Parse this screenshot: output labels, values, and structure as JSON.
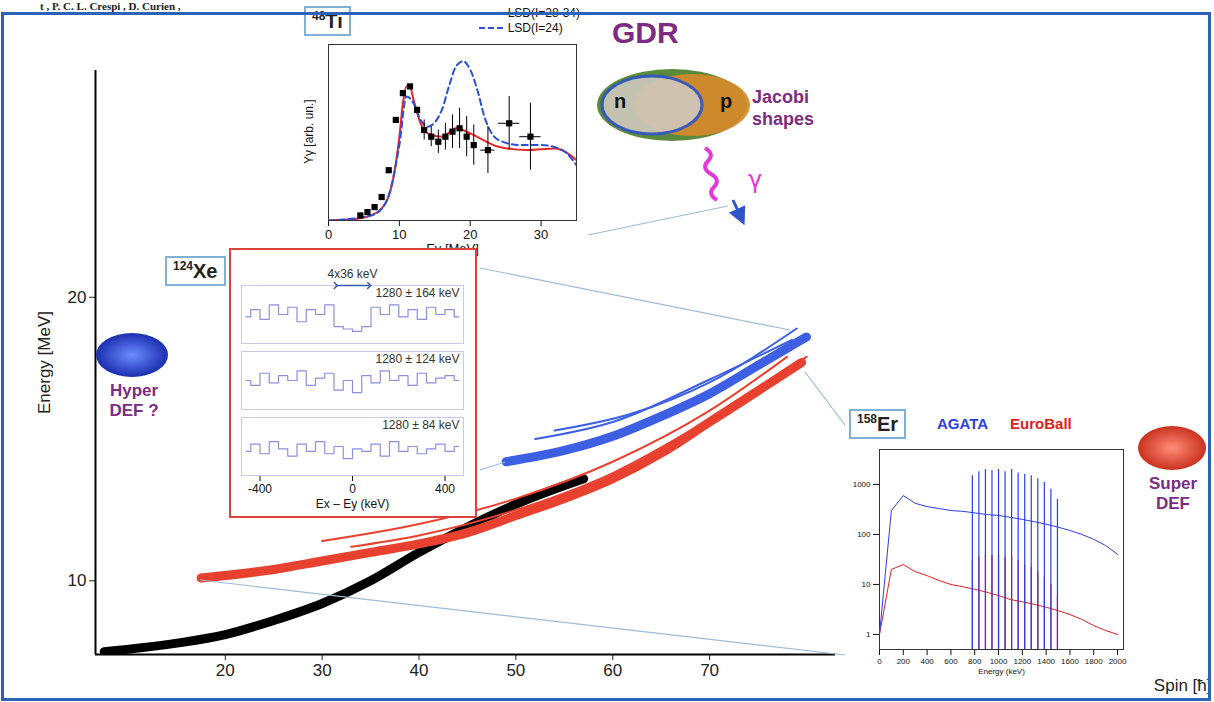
{
  "chart_data": [
    {
      "type": "line",
      "x_label": "Spin [ħ]",
      "y_label": "Energy [MeV]",
      "xlim": [
        6.6,
        83
      ],
      "ylim": [
        7.4,
        28
      ],
      "xticks": [
        20,
        30,
        40,
        50,
        60,
        70
      ],
      "yticks": [
        10,
        20
      ],
      "series": [
        {
          "color": "#000000",
          "line_style": "thick",
          "x": [
            7.5,
            15,
            20,
            25,
            30,
            35,
            40,
            45,
            50,
            57
          ],
          "values": [
            7.5,
            7.8,
            8.1,
            8.6,
            9.2,
            10.0,
            11.0,
            11.9,
            12.7,
            13.6
          ]
        },
        {
          "color": "#e9412f",
          "line_style": "thick",
          "x": [
            17.5,
            25,
            30,
            35,
            40,
            45,
            50,
            55,
            60,
            65,
            70,
            75,
            79.5
          ],
          "values": [
            10.1,
            10.4,
            10.7,
            11.0,
            11.3,
            11.7,
            12.3,
            12.9,
            13.6,
            14.5,
            15.6,
            16.7,
            17.7
          ]
        },
        {
          "color": "#e9412f",
          "line_style": "thin",
          "x": [
            30,
            40,
            50,
            60,
            70,
            78
          ],
          "values": [
            11.4,
            12.0,
            12.9,
            14.2,
            16.0,
            17.9
          ]
        },
        {
          "color": "#e9412f",
          "line_style": "thin",
          "x": [
            33,
            40,
            50,
            60,
            70,
            80
          ],
          "values": [
            11.2,
            11.6,
            12.5,
            13.8,
            15.7,
            17.9
          ]
        },
        {
          "color": "#3d5fe3",
          "line_style": "thick",
          "x": [
            49,
            55,
            60,
            65,
            70,
            75,
            80
          ],
          "values": [
            14.2,
            14.6,
            15.1,
            15.8,
            16.6,
            17.6,
            18.6
          ]
        },
        {
          "color": "#3d5fe3",
          "line_style": "thin",
          "x": [
            52,
            60,
            70,
            78.5
          ],
          "values": [
            15.0,
            15.6,
            17.1,
            18.5
          ]
        },
        {
          "color": "#3d5fe3",
          "line_style": "thin",
          "x": [
            54,
            62,
            70,
            79
          ],
          "values": [
            15.3,
            15.9,
            17.0,
            18.9
          ]
        }
      ],
      "annotations": {
        "header": "t , P. C. L. Crespi , D. Curien ,",
        "gdr": "GDR",
        "n": "n",
        "p": "p",
        "jacobi": "Jacobi shapes",
        "gamma": "γ",
        "hyper": "Hyper DEF ?",
        "super": "Super DEF"
      }
    },
    {
      "type": "line",
      "title": "48Ti",
      "x_label": "Eγ [MeV]",
      "y_label": "Yγ [arb. un.]",
      "xlim": [
        0,
        35
      ],
      "ylim": [
        0,
        1.05
      ],
      "xticks": [
        0,
        10,
        20,
        30
      ],
      "tick_labels": "x",
      "legend": "top-right",
      "series": [
        {
          "name": "LSD(I=28-34)",
          "color": "#e8262a",
          "line_style": "solid",
          "x": [
            0,
            4,
            6,
            8,
            9,
            10,
            10.5,
            11,
            11.5,
            12,
            13,
            14,
            16,
            18,
            20,
            24,
            28,
            32,
            35
          ],
          "values": [
            0,
            0.01,
            0.03,
            0.1,
            0.22,
            0.5,
            0.7,
            0.8,
            0.8,
            0.72,
            0.58,
            0.52,
            0.5,
            0.55,
            0.52,
            0.44,
            0.42,
            0.43,
            0.36
          ]
        },
        {
          "name": "LSD(I=24)",
          "color": "#2b4fd8",
          "line_style": "dashed",
          "x": [
            0,
            6,
            8,
            10,
            11,
            12,
            13,
            14,
            16,
            17,
            18,
            19,
            20,
            21,
            22,
            24,
            27,
            30,
            33,
            35
          ],
          "values": [
            0,
            0.03,
            0.1,
            0.45,
            0.74,
            0.7,
            0.6,
            0.56,
            0.66,
            0.8,
            0.92,
            0.95,
            0.9,
            0.78,
            0.62,
            0.48,
            0.45,
            0.45,
            0.42,
            0.33
          ]
        }
      ],
      "points": {
        "type": "scatter",
        "marker": "square",
        "color": "#000000",
        "x": [
          4.5,
          5.5,
          6.5,
          7.5,
          8.5,
          9.5,
          10.5,
          11.5,
          12.5,
          13.5,
          14.5,
          15.5,
          16.5,
          17.5,
          18.5,
          19.5,
          20.5,
          22.5,
          25.5,
          28.5
        ],
        "values": [
          0.03,
          0.05,
          0.08,
          0.14,
          0.3,
          0.6,
          0.76,
          0.8,
          0.66,
          0.54,
          0.5,
          0.47,
          0.5,
          0.53,
          0.55,
          0.5,
          0.45,
          0.42,
          0.58,
          0.5
        ],
        "yerr": [
          0,
          0,
          0,
          0,
          0,
          0,
          0,
          0,
          0,
          0.06,
          0.06,
          0.07,
          0.08,
          0.1,
          0.12,
          0.12,
          0.12,
          0.14,
          0.16,
          0.2
        ],
        "xerr": [
          0,
          0,
          0,
          0,
          0,
          0,
          0,
          0,
          0,
          0,
          0,
          0,
          0,
          0,
          0,
          0,
          0,
          1,
          1.5,
          1.5
        ]
      }
    },
    {
      "type": "line",
      "title": "124Xe",
      "x_label": "Ex – Ey (keV)",
      "xlim": [
        -480,
        480
      ],
      "ylim": [
        0,
        1.2
      ],
      "xticks": [
        -400,
        0,
        400
      ],
      "tick_labels": "x",
      "x": [
        -460,
        -420,
        -380,
        -340,
        -300,
        -260,
        -220,
        -180,
        -140,
        -100,
        -60,
        -20,
        20,
        60,
        100,
        140,
        180,
        220,
        260,
        300,
        340,
        380,
        420,
        460
      ],
      "series": [
        {
          "name": "1280 ± 164 keV",
          "color": "#8a8fe0",
          "line_style": "step",
          "values": [
            0.55,
            0.7,
            0.5,
            0.8,
            0.6,
            0.75,
            0.45,
            0.7,
            0.6,
            0.8,
            0.35,
            0.3,
            0.25,
            0.35,
            0.75,
            0.6,
            0.8,
            0.55,
            0.7,
            0.5,
            0.75,
            0.6,
            0.7,
            0.55
          ]
        },
        {
          "name": "1280 ± 124 keV",
          "color": "#8a8fe0",
          "line_style": "step",
          "values": [
            0.6,
            0.5,
            0.75,
            0.55,
            0.7,
            0.6,
            0.8,
            0.5,
            0.65,
            0.75,
            0.4,
            0.6,
            0.35,
            0.7,
            0.55,
            0.8,
            0.6,
            0.7,
            0.5,
            0.75,
            0.55,
            0.65,
            0.7,
            0.6
          ]
        },
        {
          "name": "1280 ± 84 keV",
          "color": "#8a8fe0",
          "line_style": "step",
          "values": [
            0.5,
            0.65,
            0.45,
            0.7,
            0.55,
            0.4,
            0.65,
            0.5,
            0.7,
            0.45,
            0.6,
            0.35,
            0.55,
            0.5,
            0.65,
            0.4,
            0.7,
            0.5,
            0.6,
            0.45,
            0.55,
            0.65,
            0.5,
            0.6
          ]
        }
      ],
      "bracket": {
        "label": "4x36 keV",
        "from": -72,
        "to": 72
      }
    },
    {
      "type": "line",
      "title": "158Er",
      "x_label": "Energy (keV)",
      "log": "y",
      "legend": "top",
      "xlim": [
        0,
        2050
      ],
      "ylim": [
        0.5,
        5000
      ],
      "xticks": [
        0,
        200,
        400,
        600,
        800,
        1000,
        1200,
        1400,
        1600,
        1800,
        2000
      ],
      "yticks": [
        1,
        10,
        100,
        1000
      ],
      "x": [
        0,
        100,
        200,
        300,
        400,
        500,
        600,
        700,
        800,
        900,
        1000,
        1100,
        1200,
        1300,
        1400,
        1500,
        1600,
        1700,
        1800,
        1900,
        2000
      ],
      "series": [
        {
          "name": "AGATA",
          "color": "#2d3ee0",
          "values": [
            1,
            300,
            600,
            420,
            360,
            330,
            300,
            290,
            270,
            250,
            240,
            220,
            200,
            180,
            160,
            140,
            120,
            100,
            80,
            60,
            40
          ],
          "peaks": {
            "x": [
              780,
              835,
              890,
              945,
              1000,
              1055,
              1110,
              1165,
              1220,
              1275,
              1330,
              1385,
              1440,
              1495
            ],
            "values": [
              1500,
              1800,
              2000,
              1900,
              2000,
              1800,
              2000,
              1700,
              1600,
              1500,
              1300,
              1100,
              800,
              500
            ]
          }
        },
        {
          "name": "EuroBall",
          "color": "#e02020",
          "values": [
            1,
            20,
            25,
            18,
            15,
            12,
            10,
            9,
            8,
            7,
            6,
            5,
            4.5,
            4,
            3.5,
            3,
            2.5,
            2,
            1.5,
            1.2,
            1
          ],
          "peaks": {
            "x": [
              780,
              835,
              890,
              945,
              1000,
              1055,
              1110,
              1165,
              1220,
              1275,
              1330,
              1385,
              1440,
              1495
            ],
            "values": [
              30,
              35,
              40,
              38,
              40,
              35,
              36,
              30,
              25,
              22,
              18,
              14,
              10,
              6
            ]
          }
        }
      ]
    }
  ]
}
